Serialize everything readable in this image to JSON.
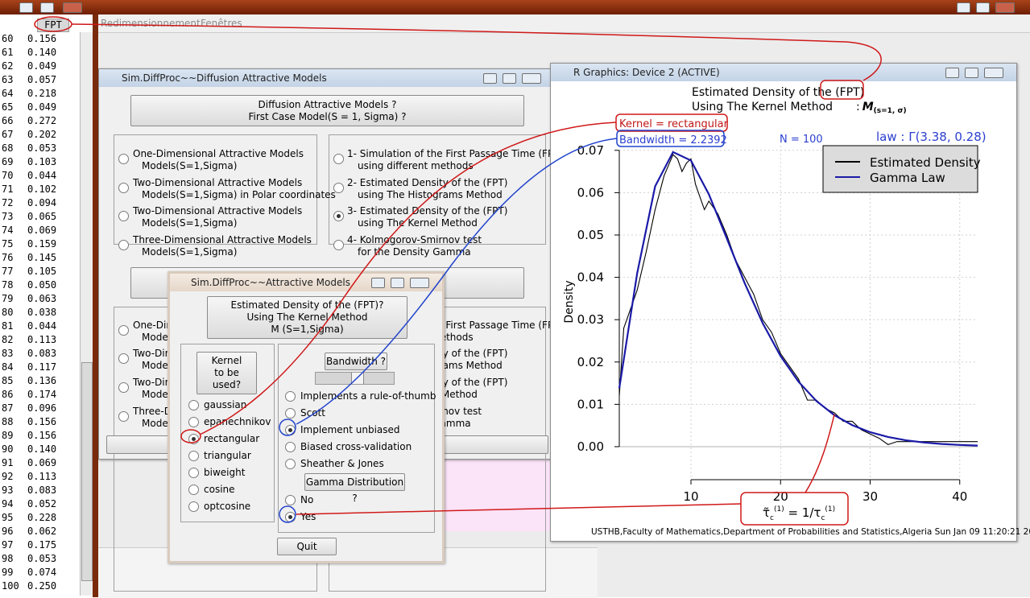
{
  "menu": [
    "Redimensionnement",
    "Fenêtres"
  ],
  "sheet": {
    "header": "FPT",
    "rows": [
      [
        "60",
        "0.156"
      ],
      [
        "61",
        "0.140"
      ],
      [
        "62",
        "0.049"
      ],
      [
        "63",
        "0.057"
      ],
      [
        "64",
        "0.218"
      ],
      [
        "65",
        "0.049"
      ],
      [
        "66",
        "0.272"
      ],
      [
        "67",
        "0.202"
      ],
      [
        "68",
        "0.053"
      ],
      [
        "69",
        "0.103"
      ],
      [
        "70",
        "0.044"
      ],
      [
        "71",
        "0.102"
      ],
      [
        "72",
        "0.094"
      ],
      [
        "73",
        "0.065"
      ],
      [
        "74",
        "0.069"
      ],
      [
        "75",
        "0.159"
      ],
      [
        "76",
        "0.145"
      ],
      [
        "77",
        "0.105"
      ],
      [
        "78",
        "0.050"
      ],
      [
        "79",
        "0.063"
      ],
      [
        "80",
        "0.038"
      ],
      [
        "81",
        "0.044"
      ],
      [
        "82",
        "0.113"
      ],
      [
        "83",
        "0.083"
      ],
      [
        "84",
        "0.117"
      ],
      [
        "85",
        "0.136"
      ],
      [
        "86",
        "0.174"
      ],
      [
        "87",
        "0.096"
      ],
      [
        "88",
        "0.156"
      ],
      [
        "89",
        "0.156"
      ],
      [
        "90",
        "0.140"
      ],
      [
        "91",
        "0.069"
      ],
      [
        "92",
        "0.113"
      ],
      [
        "93",
        "0.083"
      ],
      [
        "94",
        "0.052"
      ],
      [
        "95",
        "0.228"
      ],
      [
        "96",
        "0.062"
      ],
      [
        "97",
        "0.175"
      ],
      [
        "98",
        "0.053"
      ],
      [
        "99",
        "0.074"
      ],
      [
        "100",
        "0.250"
      ]
    ]
  },
  "main_window": {
    "title": "Sim.DiffProc~~Diffusion Attractive Models",
    "button": [
      "Diffusion Attractive Models ?",
      "First Case Model(S = 1, Sigma) ?"
    ],
    "models": [
      [
        "One-Dimensional Attractive Models",
        "Models(S=1,Sigma)"
      ],
      [
        "Two-Dimensional Attractive Models",
        "Models(S=1,Sigma) in Polar coordinates"
      ],
      [
        "Two-Dimensional Attractive Models",
        "Models(S=1,Sigma)"
      ],
      [
        "Three-Dimensional Attractive Models",
        "Models(S=1,Sigma)"
      ]
    ],
    "methods": [
      [
        "1- Simulation of the First Passage Time (FPT)",
        "using different methods"
      ],
      [
        "2- Estimated Density of the (FPT)",
        "using The Histograms Method"
      ],
      [
        "3- Estimated Density of the (FPT)",
        "using The Kernel Method"
      ],
      [
        "4- Kolmogorov-Smirnov test",
        "for the Density Gamma"
      ]
    ],
    "selected_method": 2
  },
  "dialog": {
    "title": "Sim.DiffProc~~Attractive Models",
    "button": [
      "Estimated Density of the (FPT)?",
      "Using The Kernel Method",
      "M (S=1,Sigma)"
    ],
    "kernel_button": [
      "Kernel",
      "to be",
      "used?"
    ],
    "kernels": [
      "gaussian",
      "epanechnikov",
      "rectangular",
      "triangular",
      "biweight",
      "cosine",
      "optcosine"
    ],
    "selected_kernel": 2,
    "bandwidth_button": "Bandwidth ?",
    "bandwidth_methods": [
      "Implements a rule-of-thumb",
      "Scott",
      "Implement unbiased",
      "Biased cross-validation",
      "Sheather & Jones"
    ],
    "selected_bandwidth": 2,
    "gamma_button": "Gamma Distribution ?",
    "gamma_options": [
      "No",
      "Yes"
    ],
    "selected_gamma": 1,
    "quit": "Quit"
  },
  "graphics_window": {
    "title": "R Graphics: Device 2 (ACTIVE)"
  },
  "chart_data": {
    "type": "line",
    "title": [
      "Estimated Density of the (FPT)",
      "Using The Kernel Method"
    ],
    "annotations": {
      "model": [
        ":",
        "M",
        "(s=1, σ)"
      ],
      "kernel": "Kernel = rectangular",
      "bandwidth": "Bandwidth = 2.2392",
      "n": "N = 100",
      "law": "law : Γ(3.38, 0.28)",
      "formula": [
        "τ̃",
        "c",
        "(1)",
        " = 1/τ",
        "c",
        "(1)"
      ]
    },
    "y_label": "Density",
    "xlim": [
      2,
      42
    ],
    "ylim": [
      -0.0078,
      0.0711
    ],
    "xticks": [
      10,
      20,
      30,
      40
    ],
    "yticks": [
      {
        "value": 0,
        "label": "0.00"
      },
      {
        "value": 0.01,
        "label": "0.01"
      },
      {
        "value": 0.02,
        "label": "0.02"
      },
      {
        "value": 0.03,
        "label": "0.03"
      },
      {
        "value": 0.04,
        "label": "0.04"
      },
      {
        "value": 0.05,
        "label": "0.05"
      },
      {
        "value": 0.06,
        "label": "0.06"
      },
      {
        "value": 0.07,
        "label": "0.07"
      }
    ],
    "grid": true,
    "legend": "top-right",
    "series": [
      {
        "name": "Estimated Density",
        "color": "#000000",
        "x": [
          2,
          2.5,
          3,
          4,
          5,
          6,
          7,
          8,
          8.5,
          9,
          9.5,
          10,
          10.5,
          11,
          11.5,
          12,
          13,
          14,
          15,
          16,
          17,
          18,
          19,
          20,
          21,
          22,
          23,
          24,
          25,
          26,
          27,
          28,
          29,
          30,
          31,
          32,
          33,
          36,
          42
        ],
        "values": [
          0.012,
          0.028,
          0.031,
          0.037,
          0.046,
          0.056,
          0.064,
          0.069,
          0.068,
          0.065,
          0.067,
          0.068,
          0.062,
          0.059,
          0.056,
          0.058,
          0.055,
          0.05,
          0.044,
          0.04,
          0.036,
          0.03,
          0.027,
          0.022,
          0.019,
          0.016,
          0.011,
          0.011,
          0.009,
          0.008,
          0.006,
          0.006,
          0.004,
          0.003,
          0.002,
          0.0005,
          0.0012,
          0.0012,
          0.0012
        ]
      },
      {
        "name": "Gamma Law",
        "color": "#1a1aa8",
        "x": [
          2,
          4,
          6,
          8,
          10,
          12,
          14,
          16,
          18,
          20,
          22,
          24,
          26,
          28,
          30,
          32,
          34,
          36,
          38,
          40,
          42
        ],
        "values": [
          0.0138,
          0.041,
          0.0615,
          0.0696,
          0.0676,
          0.0596,
          0.0492,
          0.0386,
          0.0292,
          0.0214,
          0.01535,
          0.01079,
          0.00745,
          0.00508,
          0.00342,
          0.00228,
          0.0015,
          0.00098,
          0.00064,
          0.00041,
          0.00026
        ]
      }
    ],
    "footnote": "USTHB,Faculty of Mathematics,Department of Probabilities and Statistics,Algeria Sun Jan 09 11:20:21 2011"
  }
}
